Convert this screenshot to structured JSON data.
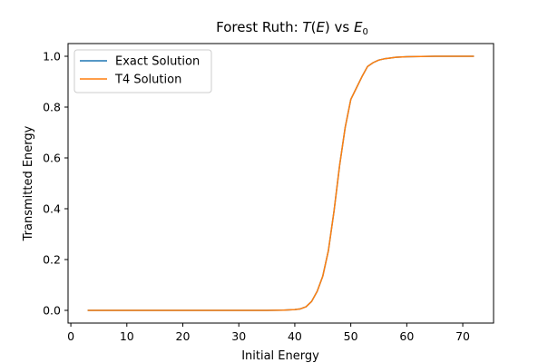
{
  "chart_data": {
    "type": "line",
    "title": {
      "prefix": "Forest Ruth: ",
      "t_var": "T",
      "open_paren": "(",
      "e_var": "E",
      "close_paren": ")",
      "vs": " vs ",
      "e0_var": "E",
      "e0_sub": "0"
    },
    "xlabel": "Initial Energy",
    "ylabel": "Transmitted Energy",
    "xlim": [
      -0.5,
      75.5
    ],
    "ylim": [
      -0.05,
      1.05
    ],
    "xticks": [
      0,
      10,
      20,
      30,
      40,
      50,
      60,
      70
    ],
    "yticks": [
      0.0,
      0.2,
      0.4,
      0.6,
      0.8,
      1.0
    ],
    "xtick_labels": [
      "0",
      "10",
      "20",
      "30",
      "40",
      "50",
      "60",
      "70"
    ],
    "ytick_labels": [
      "0.0",
      "0.2",
      "0.4",
      "0.6",
      "0.8",
      "1.0"
    ],
    "grid": false,
    "legend_position": "top-left",
    "series": [
      {
        "name": "Exact Solution",
        "color": "#1f77b4",
        "x": [
          3,
          35,
          38,
          40,
          41,
          42,
          43,
          44,
          45,
          46,
          47,
          48,
          49,
          50,
          51,
          52,
          53,
          54,
          55,
          56,
          57,
          58,
          60,
          65,
          72
        ],
        "y": [
          0.0,
          0.0,
          0.001,
          0.003,
          0.006,
          0.014,
          0.035,
          0.075,
          0.135,
          0.235,
          0.39,
          0.57,
          0.72,
          0.83,
          0.875,
          0.92,
          0.96,
          0.975,
          0.985,
          0.99,
          0.993,
          0.996,
          0.998,
          1.0,
          1.0
        ]
      },
      {
        "name": "T4 Solution",
        "color": "#ff7f0e",
        "x": [
          3,
          35,
          38,
          40,
          41,
          42,
          43,
          44,
          45,
          46,
          47,
          48,
          49,
          50,
          51,
          52,
          53,
          54,
          55,
          56,
          57,
          58,
          60,
          65,
          72
        ],
        "y": [
          0.0,
          0.0,
          0.001,
          0.003,
          0.006,
          0.014,
          0.035,
          0.075,
          0.135,
          0.235,
          0.39,
          0.57,
          0.72,
          0.83,
          0.875,
          0.92,
          0.96,
          0.975,
          0.985,
          0.99,
          0.993,
          0.996,
          0.998,
          1.0,
          1.0
        ]
      }
    ]
  }
}
